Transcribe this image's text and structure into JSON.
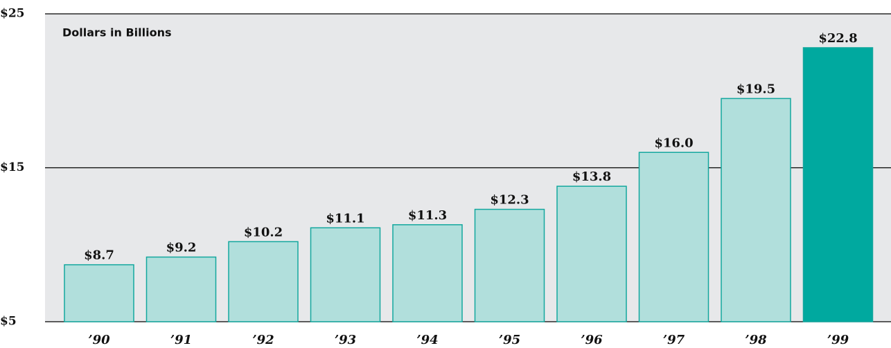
{
  "chart_data": {
    "type": "bar",
    "subtitle": "Dollars in Billions",
    "categories": [
      "’90",
      "’91",
      "’92",
      "’93",
      "’94",
      "’95",
      "’96",
      "’97",
      "’98",
      "’99"
    ],
    "values": [
      8.7,
      9.2,
      10.2,
      11.1,
      11.3,
      12.3,
      13.8,
      16.0,
      19.5,
      22.8
    ],
    "value_labels": [
      "$8.7",
      "$9.2",
      "$10.2",
      "$11.1",
      "$11.3",
      "$12.3",
      "$13.8",
      "$16.0",
      "$19.5",
      "$22.8"
    ],
    "colors": [
      "#b1dfdc",
      "#b1dfdc",
      "#b1dfdc",
      "#b1dfdc",
      "#b1dfdc",
      "#b1dfdc",
      "#b1dfdc",
      "#b1dfdc",
      "#b1dfdc",
      "#00a99f"
    ],
    "edge_color": "#13a79e",
    "ylim": [
      5,
      25
    ],
    "yticks": [
      {
        "value": 5,
        "label": "$5"
      },
      {
        "value": 15,
        "label": "$15"
      },
      {
        "value": 25,
        "label": "$25"
      }
    ],
    "grid": true
  }
}
